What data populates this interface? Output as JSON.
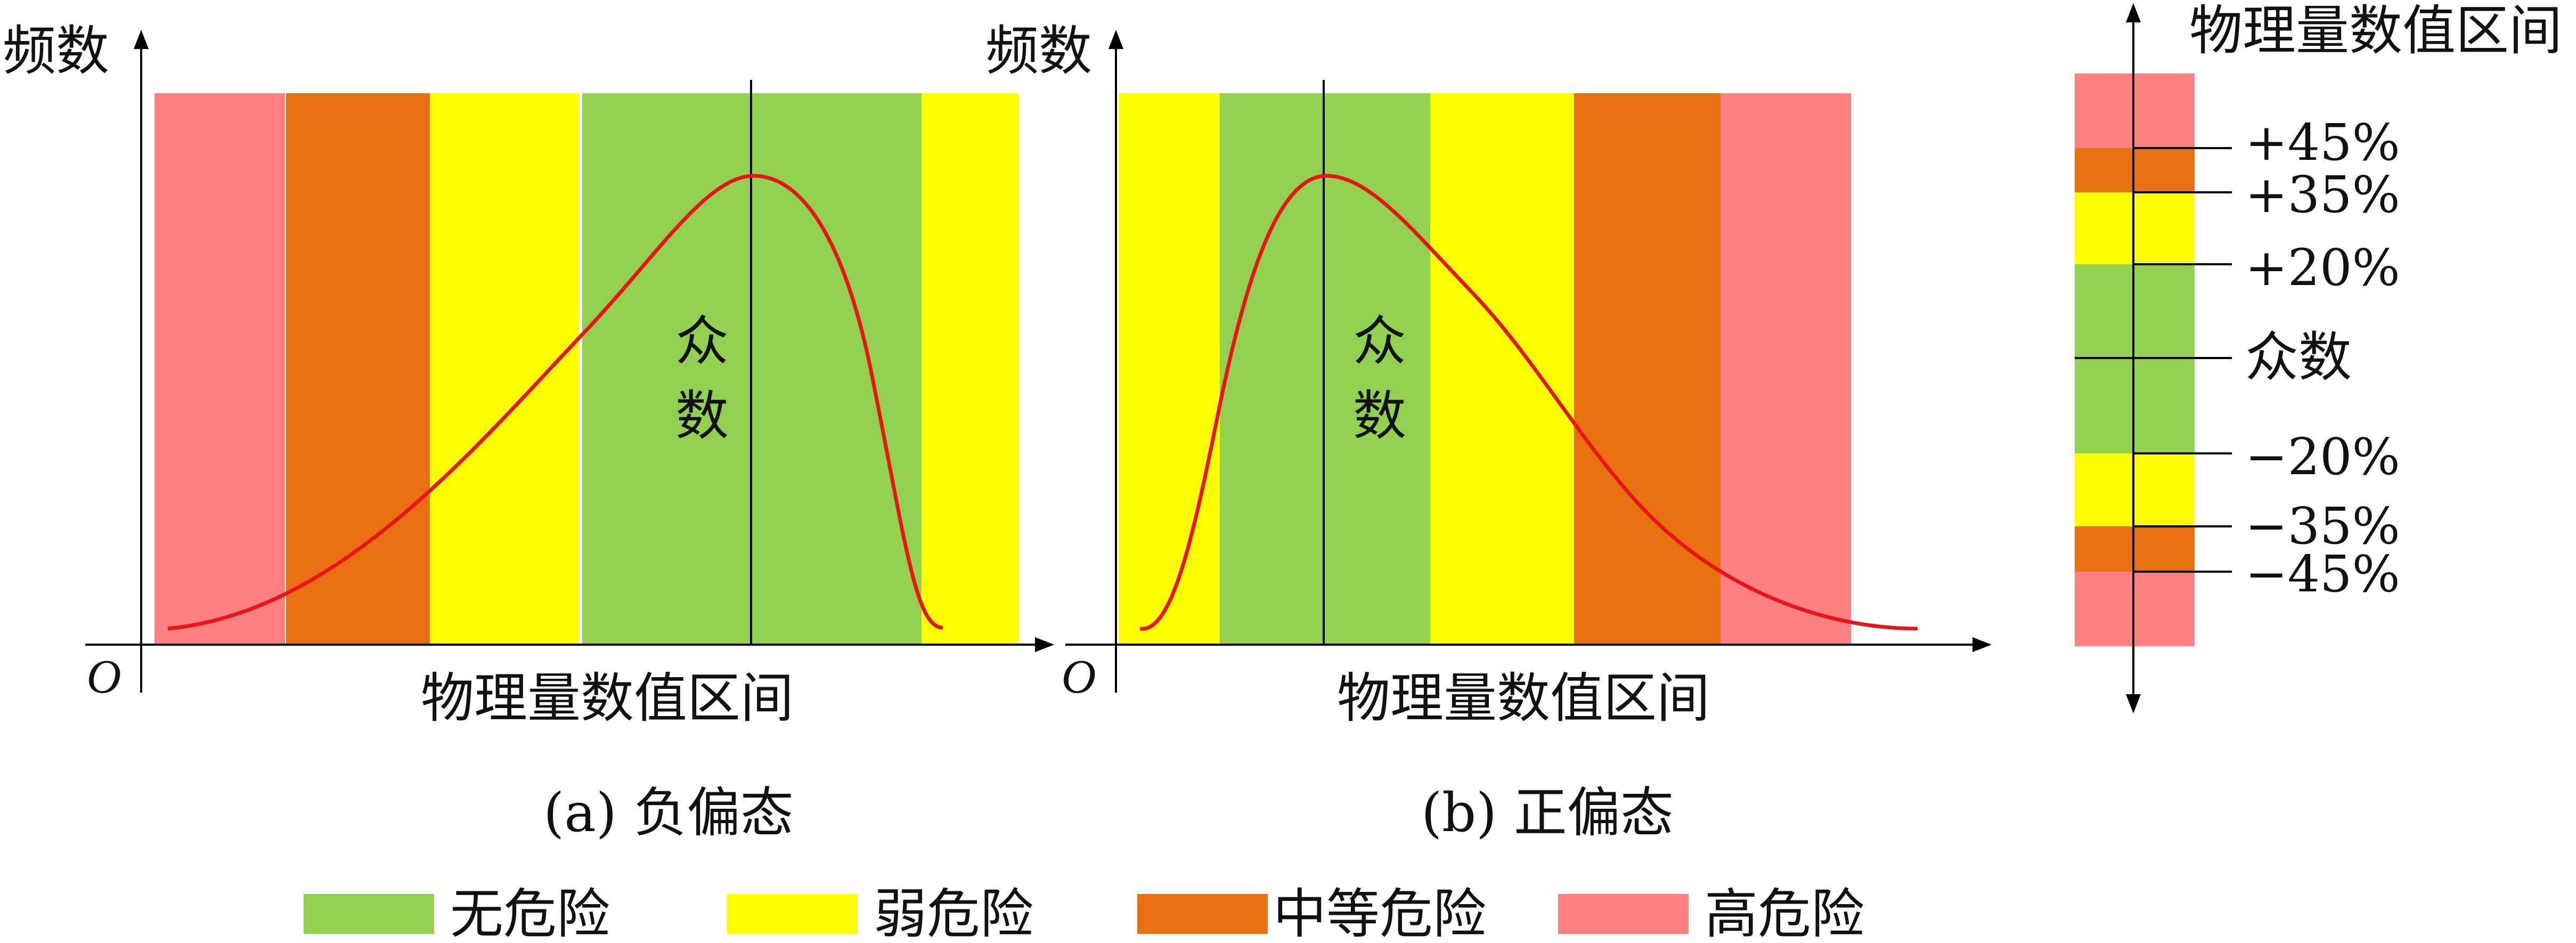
{
  "colors": {
    "safe": "#92D050",
    "weak": "#FFFF00",
    "medium": "#E97010",
    "high": "#FF8080",
    "curve": "#E8141A",
    "axis": "#000000"
  },
  "panel_a": {
    "y_axis_label": "频数",
    "origin_label": "O",
    "x_axis_label": "物理量数值区间",
    "mode_label_1": "众",
    "mode_label_2": "数",
    "caption": "(a) 负偏态"
  },
  "panel_b": {
    "y_axis_label": "频数",
    "origin_label": "O",
    "x_axis_label": "物理量数值区间",
    "mode_label_1": "众",
    "mode_label_2": "数",
    "caption": "(b) 正偏态"
  },
  "scale": {
    "title": "物理量数值区间",
    "ticks": [
      "+45%",
      "+35%",
      "+20%",
      "众数",
      "−20%",
      "−35%",
      "−45%"
    ]
  },
  "legend": [
    {
      "label": "无危险",
      "color": "#92D050"
    },
    {
      "label": "弱危险",
      "color": "#FFFF00"
    },
    {
      "label": "中等危险",
      "color": "#E97010"
    },
    {
      "label": "高危险",
      "color": "#FF8080"
    }
  ]
}
